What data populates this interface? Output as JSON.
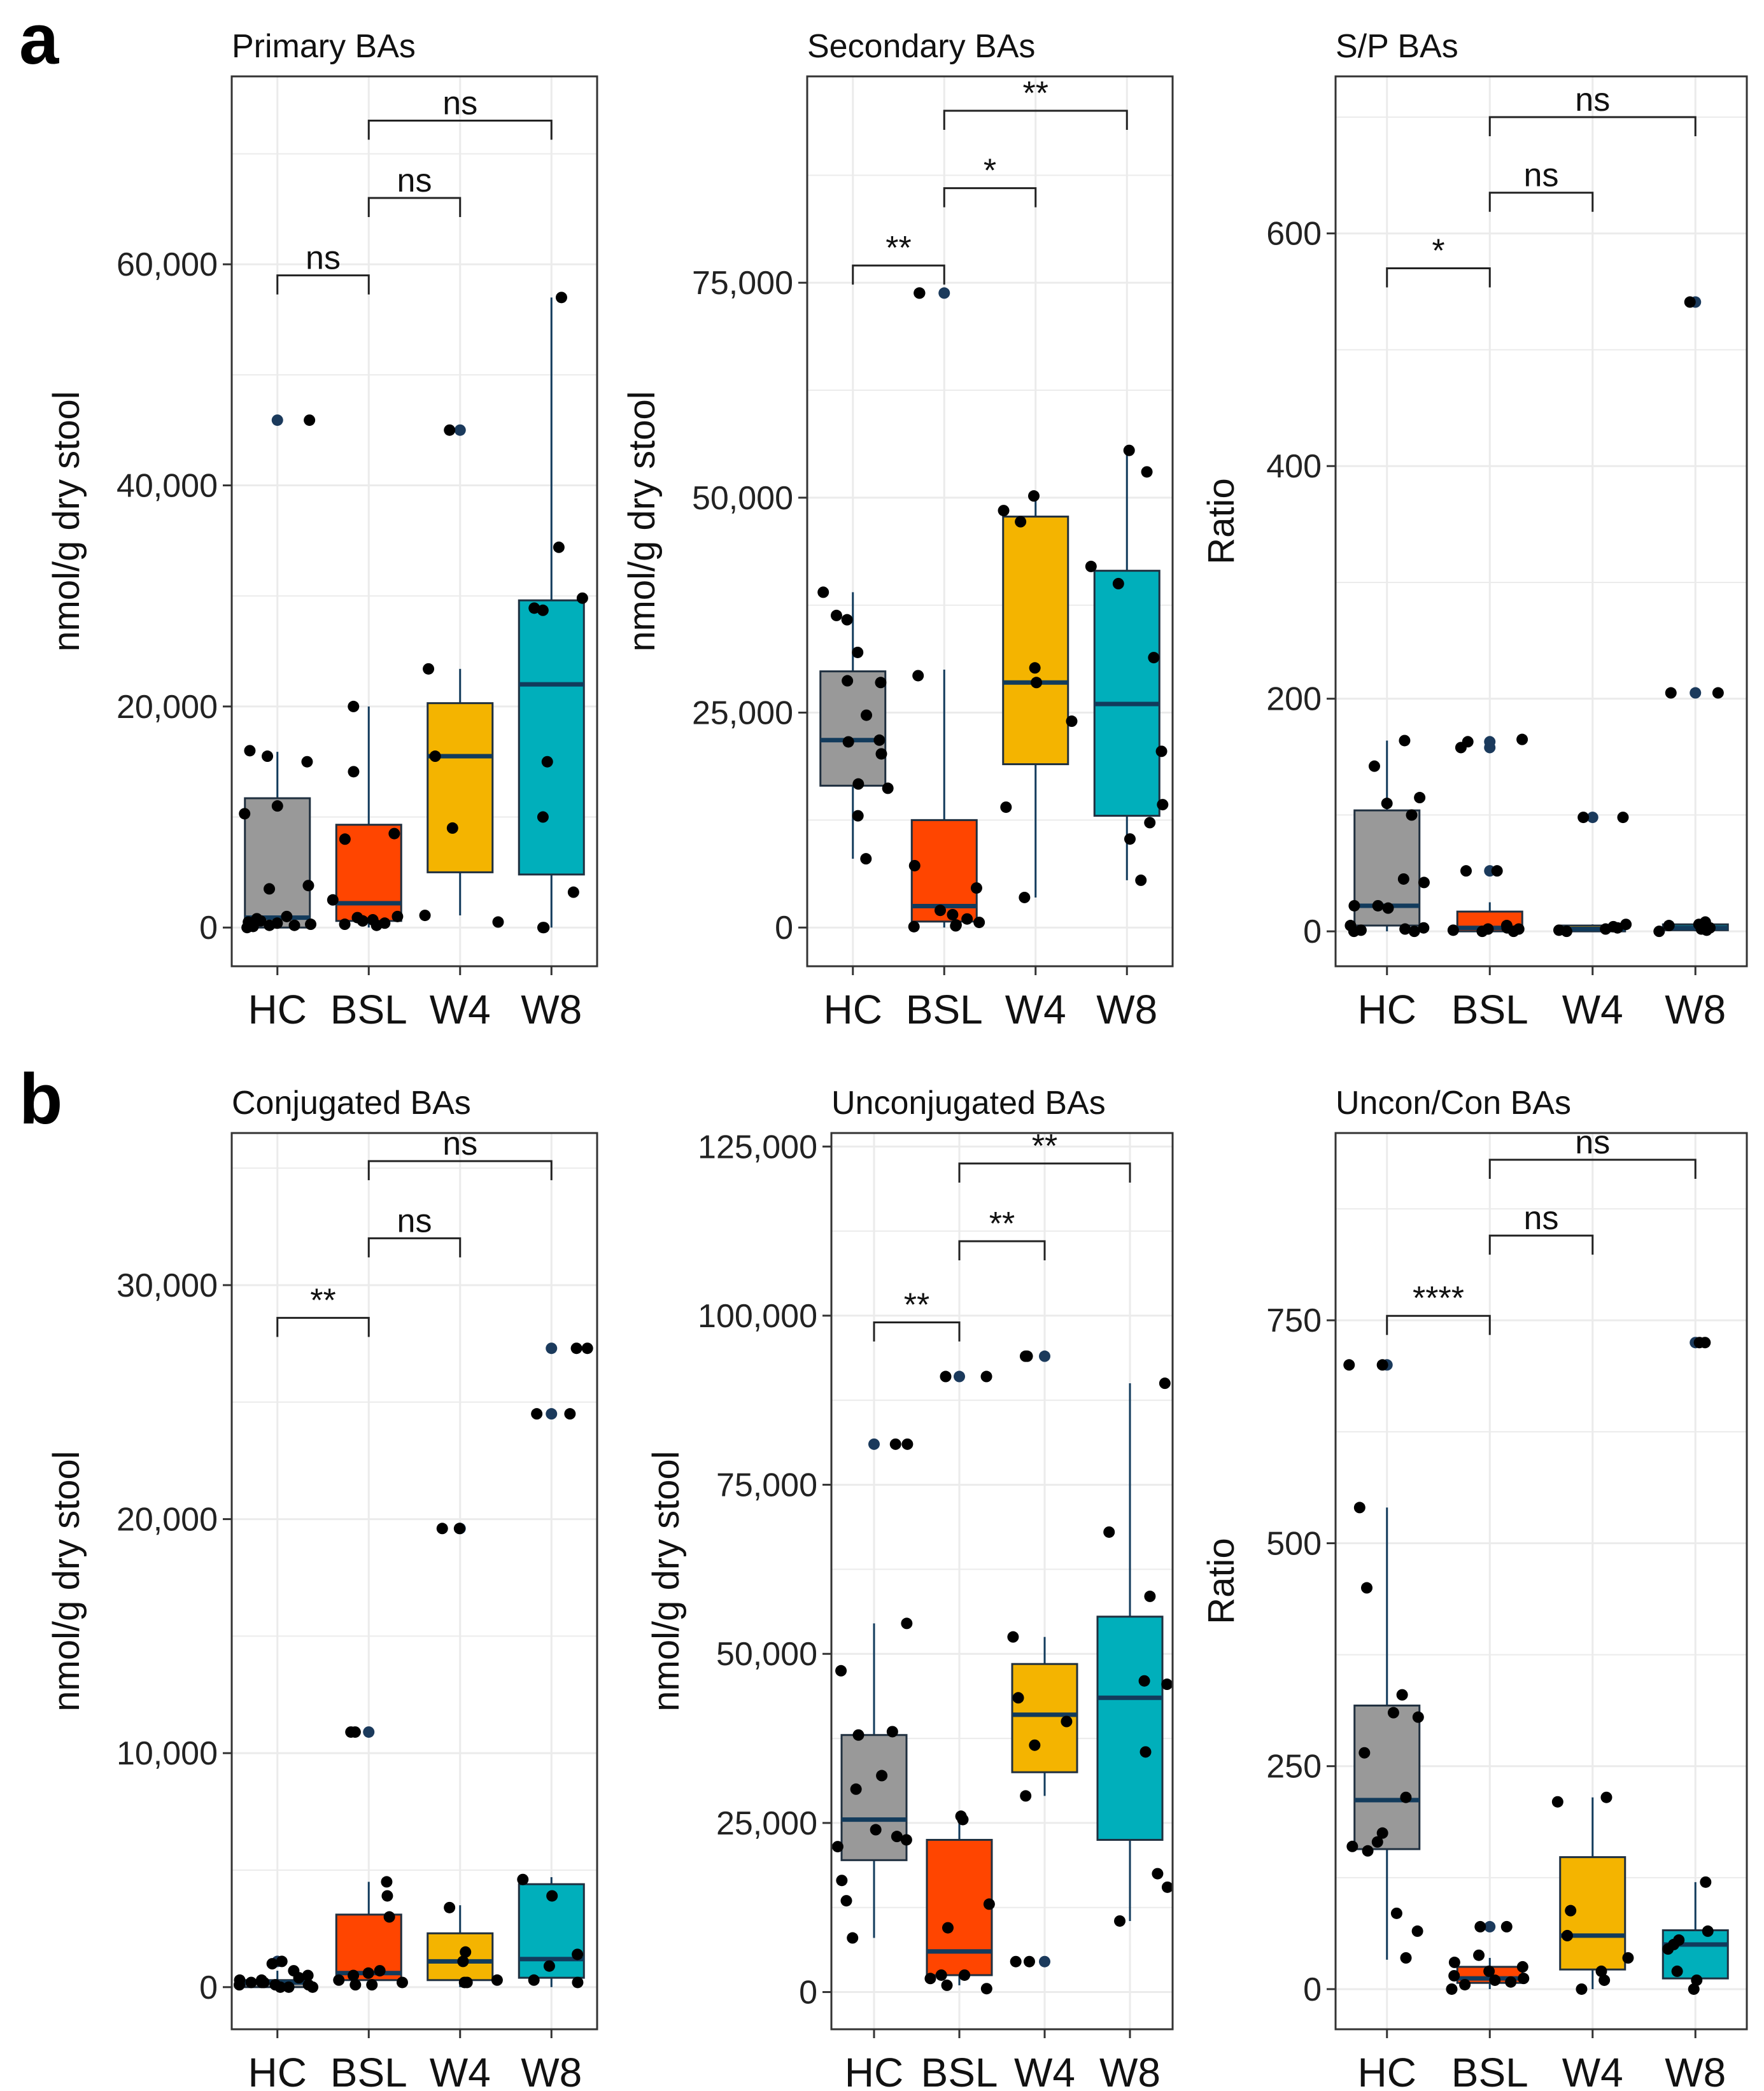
{
  "panels": [
    {
      "letter": "a",
      "charts": [
        0,
        1,
        2
      ]
    },
    {
      "letter": "b",
      "charts": [
        3,
        4,
        5
      ]
    }
  ],
  "colors": {
    "HC": "#999999",
    "BSL": "#FF4500",
    "W4": "#F4B400",
    "W8": "#00AFBB",
    "median_line": "#123B5C",
    "whisker": "#123B5C",
    "point": "#000000",
    "outlier": "#1B3A5C",
    "grid": "#EBEBEB",
    "panel_border": "#333333"
  },
  "chart_data": [
    {
      "type": "boxplot",
      "title": "Primary BAs",
      "ylabel": "nmol/g dry stool",
      "categories": [
        "HC",
        "BSL",
        "W4",
        "W8"
      ],
      "ylim": [
        -3500,
        77000
      ],
      "yticks": [
        0,
        20000,
        40000,
        60000
      ],
      "ytick_labels": [
        "0",
        "20,000",
        "40,000",
        "60,000"
      ],
      "boxes": [
        {
          "group": "HC",
          "q1": 0,
          "median": 900,
          "q3": 11700,
          "whislo": 0,
          "whishi": 15900,
          "outliers": [
            45900
          ]
        },
        {
          "group": "BSL",
          "q1": 600,
          "median": 2200,
          "q3": 9300,
          "whislo": 0,
          "whishi": 20000,
          "outliers": []
        },
        {
          "group": "W4",
          "q1": 5000,
          "median": 15500,
          "q3": 20300,
          "whislo": 1100,
          "whishi": 23400,
          "outliers": [
            45000
          ]
        },
        {
          "group": "W8",
          "q1": 4800,
          "median": 22000,
          "q3": 29600,
          "whislo": 0,
          "whishi": 57000,
          "outliers": []
        }
      ],
      "points": [
        {
          "group": "HC",
          "values": [
            15000,
            45900,
            10300,
            3500,
            3800,
            16000,
            15500,
            11000,
            1000,
            800,
            500,
            300,
            200,
            100,
            400,
            600,
            0,
            200
          ]
        },
        {
          "group": "BSL",
          "values": [
            14100,
            20000,
            2500,
            1000,
            8000,
            8500,
            600,
            300,
            700,
            900,
            400,
            200
          ]
        },
        {
          "group": "W4",
          "values": [
            23400,
            15500,
            9000,
            1100,
            500,
            45000
          ]
        },
        {
          "group": "W8",
          "values": [
            57000,
            34400,
            29800,
            28900,
            28700,
            15000,
            10000,
            3200,
            0,
            0
          ]
        }
      ],
      "comparisons": [
        {
          "from": "HC",
          "to": "BSL",
          "y": 59000,
          "label": "ns"
        },
        {
          "from": "BSL",
          "to": "W4",
          "y": 66000,
          "label": "ns"
        },
        {
          "from": "BSL",
          "to": "W8",
          "y": 73000,
          "label": "ns"
        }
      ]
    },
    {
      "type": "boxplot",
      "title": "Secondary BAs",
      "ylabel": "nmol/g dry stool",
      "categories": [
        "HC",
        "BSL",
        "W4",
        "W8"
      ],
      "ylim": [
        -4500,
        99000
      ],
      "yticks": [
        0,
        25000,
        50000,
        75000
      ],
      "ytick_labels": [
        "0",
        "25,000",
        "50,000",
        "75,000"
      ],
      "boxes": [
        {
          "group": "HC",
          "q1": 16500,
          "median": 21800,
          "q3": 29800,
          "whislo": 8000,
          "whishi": 39000,
          "outliers": []
        },
        {
          "group": "BSL",
          "q1": 700,
          "median": 2500,
          "q3": 12500,
          "whislo": 0,
          "whishi": 30000,
          "outliers": [
            73800
          ]
        },
        {
          "group": "W4",
          "q1": 19000,
          "median": 28500,
          "q3": 47800,
          "whislo": 3500,
          "whishi": 50500,
          "outliers": []
        },
        {
          "group": "W8",
          "q1": 13000,
          "median": 26000,
          "q3": 41500,
          "whislo": 5500,
          "whishi": 55500,
          "outliers": []
        }
      ],
      "points": [
        {
          "group": "HC",
          "values": [
            39000,
            35800,
            36300,
            32000,
            28500,
            28700,
            24700,
            21600,
            21800,
            20200,
            16700,
            16200,
            13000,
            8000
          ]
        },
        {
          "group": "BSL",
          "values": [
            73800,
            73800,
            29300,
            4600,
            7200,
            2000,
            1500,
            1000,
            600,
            300,
            200,
            100
          ]
        },
        {
          "group": "W4",
          "values": [
            50200,
            48500,
            47200,
            30200,
            28500,
            24000,
            14000,
            3500
          ]
        },
        {
          "group": "W8",
          "values": [
            55500,
            53000,
            42000,
            40000,
            31400,
            20500,
            14300,
            12200,
            10300,
            5500
          ]
        }
      ],
      "comparisons": [
        {
          "from": "HC",
          "to": "BSL",
          "y": 77000,
          "label": "**"
        },
        {
          "from": "BSL",
          "to": "W4",
          "y": 86000,
          "label": "*"
        },
        {
          "from": "BSL",
          "to": "W8",
          "y": 95000,
          "label": "**"
        }
      ]
    },
    {
      "type": "boxplot",
      "title": "S/P BAs",
      "ylabel": "Ratio",
      "categories": [
        "HC",
        "BSL",
        "W4",
        "W8"
      ],
      "ylim": [
        -30,
        735
      ],
      "yticks": [
        0,
        200,
        400,
        600
      ],
      "ytick_labels": [
        "0",
        "200",
        "400",
        "600"
      ],
      "boxes": [
        {
          "group": "HC",
          "q1": 5,
          "median": 22,
          "q3": 104,
          "whislo": 0,
          "whishi": 164,
          "outliers": []
        },
        {
          "group": "BSL",
          "q1": 0,
          "median": 3,
          "q3": 17,
          "whislo": 0,
          "whishi": 25,
          "outliers": [
            52,
            158,
            163
          ]
        },
        {
          "group": "W4",
          "q1": 0,
          "median": 2,
          "q3": 5,
          "whislo": 0,
          "whishi": 6,
          "outliers": [
            98
          ]
        },
        {
          "group": "W8",
          "q1": 1,
          "median": 3,
          "q3": 6,
          "whislo": 0,
          "whishi": 8,
          "outliers": [
            205,
            541
          ]
        }
      ],
      "points": [
        {
          "group": "HC",
          "values": [
            142,
            115,
            110,
            164,
            100,
            45,
            42,
            22,
            22,
            20,
            5,
            3,
            2,
            1,
            0,
            0
          ]
        },
        {
          "group": "BSL",
          "values": [
            163,
            158,
            165,
            52,
            52,
            5,
            3,
            2,
            2,
            1,
            0,
            0
          ]
        },
        {
          "group": "W4",
          "values": [
            98,
            98,
            6,
            4,
            3,
            2,
            1,
            0
          ]
        },
        {
          "group": "W8",
          "values": [
            541,
            205,
            205,
            8,
            6,
            5,
            3,
            2,
            1,
            0
          ]
        }
      ],
      "comparisons": [
        {
          "from": "HC",
          "to": "BSL",
          "y": 570,
          "label": "*"
        },
        {
          "from": "BSL",
          "to": "W4",
          "y": 635,
          "label": "ns"
        },
        {
          "from": "BSL",
          "to": "W8",
          "y": 700,
          "label": "ns"
        }
      ]
    },
    {
      "type": "boxplot",
      "title": "Conjugated BAs",
      "ylabel": "nmol/g dry stool",
      "categories": [
        "HC",
        "BSL",
        "W4",
        "W8"
      ],
      "ylim": [
        -1800,
        36500
      ],
      "yticks": [
        0,
        10000,
        20000,
        30000
      ],
      "ytick_labels": [
        "0",
        "10,000",
        "20,000",
        "30,000"
      ],
      "boxes": [
        {
          "group": "HC",
          "q1": 0,
          "median": 200,
          "q3": 300,
          "whislo": 0,
          "whishi": 700,
          "outliers": [
            1100
          ]
        },
        {
          "group": "BSL",
          "q1": 300,
          "median": 600,
          "q3": 3100,
          "whislo": 0,
          "whishi": 4500,
          "outliers": [
            10900
          ]
        },
        {
          "group": "W4",
          "q1": 300,
          "median": 1100,
          "q3": 2300,
          "whislo": 0,
          "whishi": 3500,
          "outliers": [
            19600
          ]
        },
        {
          "group": "W8",
          "q1": 400,
          "median": 1200,
          "q3": 4400,
          "whislo": 0,
          "whishi": 4700,
          "outliers": [
            24500,
            27300
          ]
        }
      ],
      "points": [
        {
          "group": "HC",
          "values": [
            1100,
            1000,
            700,
            500,
            400,
            300,
            300,
            200,
            200,
            200,
            100,
            100,
            100,
            0,
            0,
            0
          ]
        },
        {
          "group": "BSL",
          "values": [
            10900,
            10900,
            4500,
            3900,
            3000,
            700,
            600,
            500,
            300,
            200,
            100,
            100
          ]
        },
        {
          "group": "W4",
          "values": [
            19600,
            19600,
            3400,
            1500,
            1100,
            300,
            200,
            200
          ]
        },
        {
          "group": "W8",
          "values": [
            27300,
            27300,
            24500,
            24500,
            4600,
            3900,
            1400,
            900,
            300,
            200
          ]
        }
      ],
      "comparisons": [
        {
          "from": "HC",
          "to": "BSL",
          "y": 28600,
          "label": "**"
        },
        {
          "from": "BSL",
          "to": "W4",
          "y": 32000,
          "label": "ns"
        },
        {
          "from": "BSL",
          "to": "W8",
          "y": 35300,
          "label": "ns"
        }
      ]
    },
    {
      "type": "boxplot",
      "title": "Unconjugated BAs",
      "ylabel": "nmol/g dry stool",
      "categories": [
        "HC",
        "BSL",
        "W4",
        "W8"
      ],
      "ylim": [
        -5500,
        127000
      ],
      "yticks": [
        0,
        25000,
        50000,
        75000,
        100000,
        125000
      ],
      "ytick_labels": [
        "0",
        "25,000",
        "50,000",
        "75,000",
        "100,000",
        "125,000"
      ],
      "boxes": [
        {
          "group": "HC",
          "q1": 19500,
          "median": 25500,
          "q3": 38000,
          "whislo": 8000,
          "whishi": 54500,
          "outliers": [
            81000
          ]
        },
        {
          "group": "BSL",
          "q1": 2500,
          "median": 6000,
          "q3": 22500,
          "whislo": 1000,
          "whishi": 26000,
          "outliers": [
            91000
          ]
        },
        {
          "group": "W4",
          "q1": 32500,
          "median": 41000,
          "q3": 48500,
          "whislo": 29000,
          "whishi": 52500,
          "outliers": [
            4500,
            94000
          ]
        },
        {
          "group": "W8",
          "q1": 22500,
          "median": 43500,
          "q3": 55500,
          "whislo": 10500,
          "whishi": 90000,
          "outliers": []
        }
      ],
      "points": [
        {
          "group": "HC",
          "values": [
            81000,
            81000,
            54500,
            47500,
            38500,
            38000,
            32000,
            30000,
            24000,
            23000,
            22500,
            21500,
            16500,
            13500,
            8000
          ]
        },
        {
          "group": "BSL",
          "values": [
            91000,
            91000,
            26000,
            25500,
            13000,
            9500,
            2500,
            2500,
            2000,
            1000,
            500
          ]
        },
        {
          "group": "W4",
          "values": [
            94000,
            94000,
            52500,
            43500,
            40000,
            36500,
            29000,
            4500,
            4500
          ]
        },
        {
          "group": "W8",
          "values": [
            90000,
            68000,
            58500,
            46000,
            45500,
            35500,
            17500,
            15500,
            10500
          ]
        }
      ],
      "comparisons": [
        {
          "from": "HC",
          "to": "BSL",
          "y": 99000,
          "label": "**"
        },
        {
          "from": "BSL",
          "to": "W4",
          "y": 111000,
          "label": "**"
        },
        {
          "from": "BSL",
          "to": "W8",
          "y": 122500,
          "label": "**"
        }
      ]
    },
    {
      "type": "boxplot",
      "title": "Uncon/Con BAs",
      "ylabel": "Ratio",
      "categories": [
        "HC",
        "BSL",
        "W4",
        "W8"
      ],
      "ylim": [
        -45,
        960
      ],
      "yticks": [
        0,
        250,
        500,
        750
      ],
      "ytick_labels": [
        "0",
        "250",
        "500",
        "750"
      ],
      "boxes": [
        {
          "group": "HC",
          "q1": 157,
          "median": 212,
          "q3": 318,
          "whislo": 33,
          "whishi": 540,
          "outliers": [
            700
          ]
        },
        {
          "group": "BSL",
          "q1": 7,
          "median": 12,
          "q3": 25,
          "whislo": 0,
          "whishi": 35,
          "outliers": [
            70
          ]
        },
        {
          "group": "W4",
          "q1": 22,
          "median": 60,
          "q3": 148,
          "whislo": 0,
          "whishi": 215,
          "outliers": []
        },
        {
          "group": "W8",
          "q1": 12,
          "median": 50,
          "q3": 66,
          "whislo": 0,
          "whishi": 120,
          "outliers": [
            725
          ]
        }
      ],
      "points": [
        {
          "group": "HC",
          "values": [
            700,
            700,
            540,
            450,
            330,
            310,
            305,
            265,
            215,
            175,
            165,
            160,
            155,
            85,
            65,
            35
          ]
        },
        {
          "group": "BSL",
          "values": [
            70,
            70,
            38,
            30,
            25,
            20,
            15,
            12,
            10,
            8,
            5,
            0
          ]
        },
        {
          "group": "W4",
          "values": [
            215,
            210,
            88,
            60,
            35,
            20,
            10,
            0
          ]
        },
        {
          "group": "W8",
          "values": [
            725,
            725,
            120,
            65,
            55,
            50,
            45,
            20,
            10,
            0
          ]
        }
      ],
      "comparisons": [
        {
          "from": "HC",
          "to": "BSL",
          "y": 755,
          "label": "****"
        },
        {
          "from": "BSL",
          "to": "W4",
          "y": 845,
          "label": "ns"
        },
        {
          "from": "BSL",
          "to": "W8",
          "y": 930,
          "label": "ns"
        }
      ]
    }
  ]
}
